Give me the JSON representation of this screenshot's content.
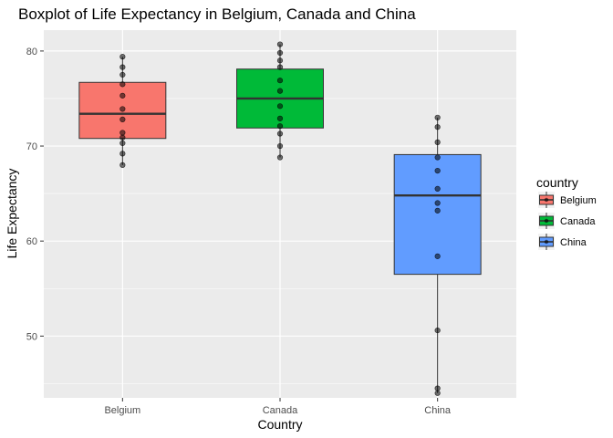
{
  "chart_data": {
    "type": "boxplot",
    "title": "Boxplot of Life Expectancy in Belgium, Canada and China",
    "xlabel": "Country",
    "ylabel": "Life Expectancy",
    "ylim": [
      43.5,
      82.2
    ],
    "yticks": [
      50,
      60,
      70,
      80
    ],
    "grid": true,
    "legend": {
      "title": "country",
      "position": "right"
    },
    "categories": [
      "Belgium",
      "Canada",
      "China"
    ],
    "series": [
      {
        "name": "Belgium",
        "color": "#F8766D",
        "box": {
          "min": 68.0,
          "q1": 70.8,
          "median": 73.4,
          "q3": 76.7,
          "max": 79.4
        },
        "points": [
          68.0,
          69.2,
          70.3,
          70.9,
          71.4,
          72.8,
          73.9,
          75.3,
          76.5,
          77.5,
          78.3,
          79.4
        ]
      },
      {
        "name": "Canada",
        "color": "#00BA38",
        "box": {
          "min": 68.8,
          "q1": 71.9,
          "median": 75.0,
          "q3": 78.1,
          "max": 80.7
        },
        "points": [
          68.8,
          70.0,
          71.3,
          72.1,
          72.9,
          74.2,
          75.8,
          76.9,
          78.3,
          79.0,
          79.8,
          80.7
        ]
      },
      {
        "name": "China",
        "color": "#619CFF",
        "box": {
          "min": 44.0,
          "q1": 56.5,
          "median": 64.8,
          "q3": 69.1,
          "max": 73.0
        },
        "points": [
          44.0,
          44.5,
          50.6,
          58.4,
          63.2,
          64.0,
          65.5,
          67.4,
          68.8,
          70.4,
          72.0,
          73.0
        ]
      }
    ]
  }
}
